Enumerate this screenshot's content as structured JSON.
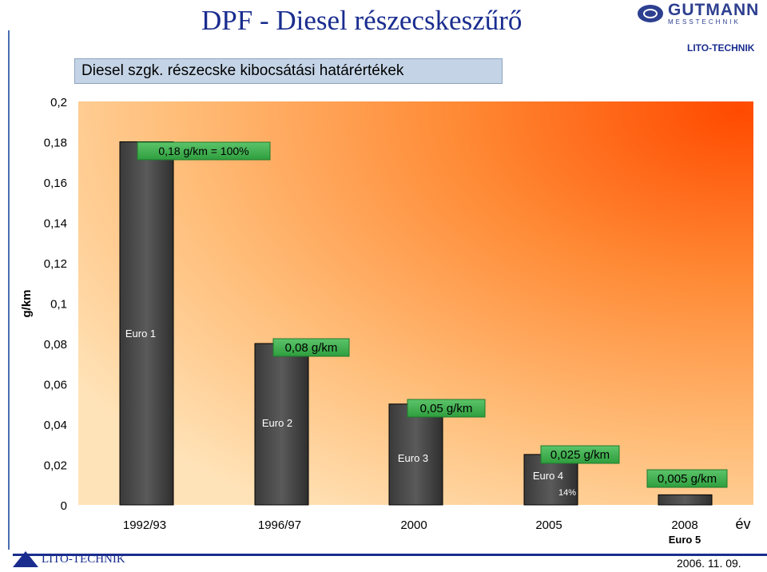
{
  "header": {
    "title": "DPF - Diesel részecskeszűrő",
    "logo_main": "GUTMANN",
    "logo_sub": "MESSTECHNIK",
    "brand_top": "LITO-TECHNIK"
  },
  "footer": {
    "brand": "LITO-TECHNIK",
    "date": "2006. 11. 09."
  },
  "colors": {
    "title": "#1a2d8f",
    "label_box": "#2e9e3e",
    "bar": "#4a4a4a"
  },
  "chart_data": {
    "type": "bar",
    "title": "Diesel szgk. részecske kibocsátási határértékek",
    "ylabel": "g/km",
    "xlabel": "év",
    "ylim": [
      0,
      0.2
    ],
    "yticks": [
      "0",
      "0,02",
      "0,04",
      "0,06",
      "0,08",
      "0,1",
      "0,12",
      "0,14",
      "0,16",
      "0,18",
      "0,2"
    ],
    "categories": [
      "1992/93",
      "1996/97",
      "2000",
      "2005",
      "2008"
    ],
    "values": [
      0.18,
      0.08,
      0.05,
      0.025,
      0.005
    ],
    "value_labels": [
      "0,18 g/km = 100%",
      "0,08 g/km",
      "0,05 g/km",
      "0,025 g/km",
      "0,005 g/km"
    ],
    "euro_labels": [
      "Euro 1",
      "Euro 2",
      "Euro 3",
      "Euro 4",
      "Euro 5"
    ],
    "annotations": [
      "14%"
    ]
  }
}
